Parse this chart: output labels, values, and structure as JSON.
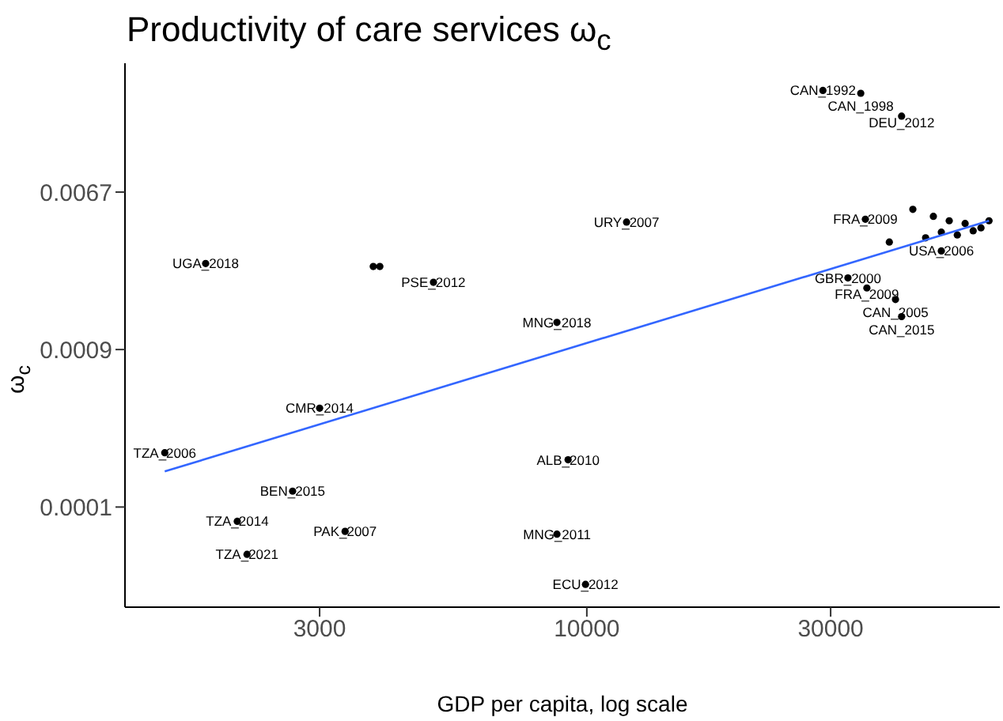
{
  "chart_data": {
    "type": "scatter",
    "title": "Productivity of care services ω$_{c}$",
    "xlabel": "GDP per capita, log scale",
    "ylabel": "ω$_{c}$",
    "log": "xy",
    "marker": "circle",
    "xlim": [
      1248,
      64300
    ],
    "xticks": [
      3000,
      10000,
      30000
    ],
    "ylim": [
      3.46e-05,
      0.0346
    ],
    "yticks": [
      {
        "value": 0.006738,
        "label": "0.0067"
      },
      {
        "value": 0.000912,
        "label": "0.0009"
      },
      {
        "value": 0.0001234,
        "label": "0.0001"
      }
    ],
    "series": [
      {
        "color": "#000000",
        "x": [
          28970,
          34360,
          41300,
          11960,
          1795,
          3820,
          3935,
          5010,
          8740,
          3000,
          1493,
          9190,
          2656,
          2070,
          3365,
          8740,
          2163,
          9940,
          32430,
          35320,
          40180,
          41300,
          35080,
          39080,
          49400,
          43450,
          47660,
          51190,
          54990,
          59060,
          49400,
          53090,
          57020,
          46020,
          61240
        ],
        "values": [
          0.0245,
          0.02363,
          0.01767,
          0.0046,
          0.00272,
          0.00262,
          0.00262,
          0.002143,
          0.001287,
          0.000433,
          0.000246,
          0.000225,
          0.000151,
          0.0001029,
          9.06e-05,
          8.74e-05,
          6.77e-05,
          4.62e-05,
          0.002263,
          0.001993,
          0.001722,
          0.001385,
          0.00477,
          0.00357,
          0.00319,
          0.00541,
          0.00495,
          0.00468,
          0.00452,
          0.00428,
          0.00405,
          0.00391,
          0.00412,
          0.00377,
          0.00468
        ]
      },
      {
        "type": "line",
        "color": "#3366ff",
        "marker": "none",
        "x": [
          1493,
          61240
        ],
        "values": [
          0.000194,
          0.00468
        ]
      }
    ],
    "annotations": [
      {
        "text": "CAN_1992",
        "x": 28970,
        "y": 0.0245
      },
      {
        "text": "CAN_1998",
        "x": 34360,
        "y": 0.02363
      },
      {
        "text": "DEU_2012",
        "x": 41300,
        "y": 0.01767
      },
      {
        "text": "URY_2007",
        "x": 11960,
        "y": 0.0046
      },
      {
        "text": "UGA_2018",
        "x": 1795,
        "y": 0.00272
      },
      {
        "text": "PSE_2012",
        "x": 5010,
        "y": 0.002143
      },
      {
        "text": "MNG_2018",
        "x": 8740,
        "y": 0.001287
      },
      {
        "text": "CMR_2014",
        "x": 3000,
        "y": 0.000433
      },
      {
        "text": "TZA_2006",
        "x": 1493,
        "y": 0.000246
      },
      {
        "text": "ALB_2010",
        "x": 9190,
        "y": 0.000225
      },
      {
        "text": "BEN_2015",
        "x": 2656,
        "y": 0.000151
      },
      {
        "text": "TZA_2014",
        "x": 2070,
        "y": 0.0001029
      },
      {
        "text": "PAK_2007",
        "x": 3365,
        "y": 9.06e-05
      },
      {
        "text": "MNG_2011",
        "x": 8740,
        "y": 8.74e-05
      },
      {
        "text": "TZA_2021",
        "x": 2163,
        "y": 6.77e-05
      },
      {
        "text": "ECU_2012",
        "x": 9940,
        "y": 4.62e-05
      },
      {
        "text": "GBR_2000",
        "x": 32430,
        "y": 0.002263
      },
      {
        "text": "FRA_2009",
        "x": 35320,
        "y": 0.001993
      },
      {
        "text": "CAN_2005",
        "x": 40180,
        "y": 0.001722
      },
      {
        "text": "CAN_2015",
        "x": 41300,
        "y": 0.001385
      },
      {
        "text": "FRA_2009",
        "x": 35080,
        "y": 0.00477
      },
      {
        "text": "USA_2006",
        "x": 49400,
        "y": 0.00319
      }
    ]
  }
}
